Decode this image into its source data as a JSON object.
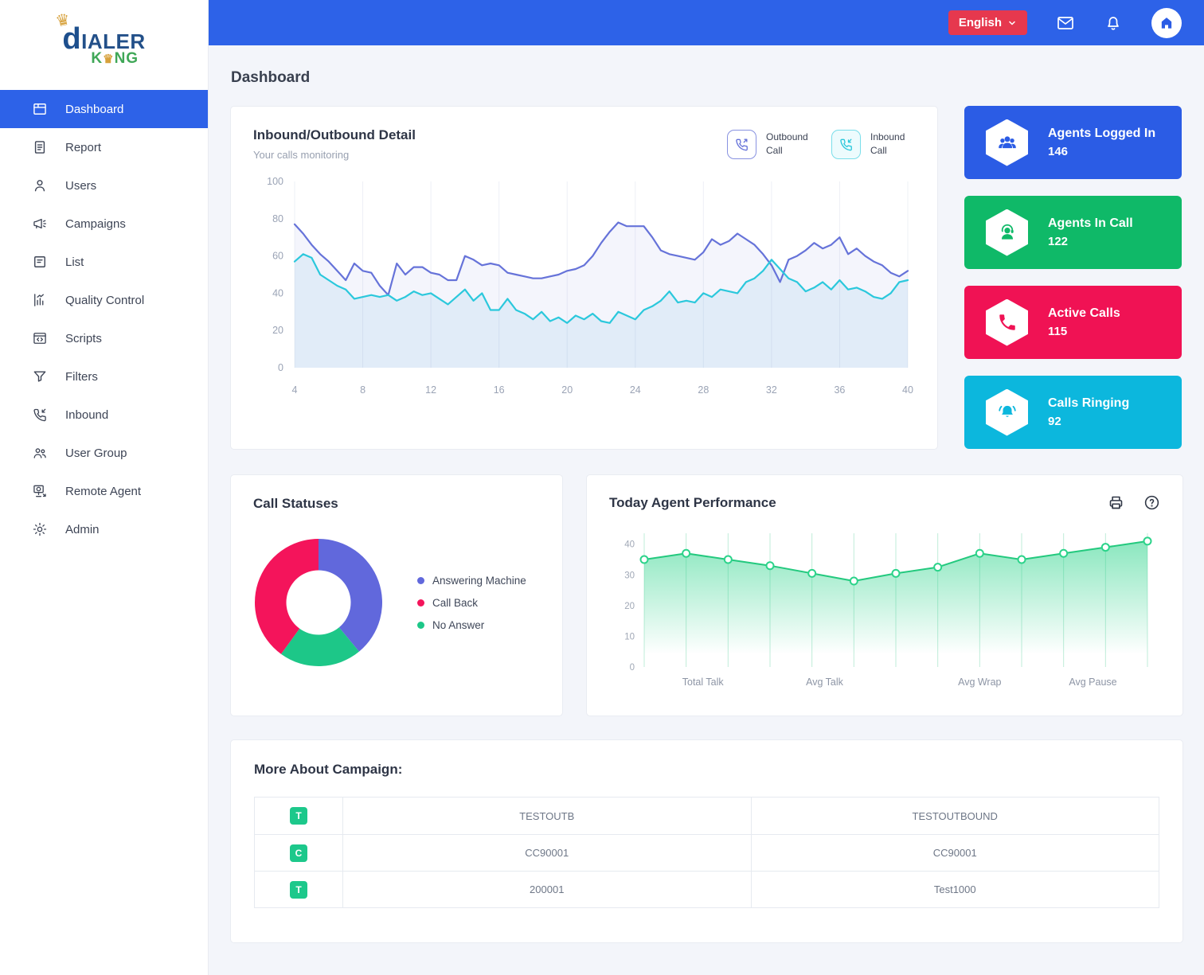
{
  "brand": {
    "crown": "♛",
    "d": "d",
    "rest": "IALER",
    "k": "K",
    "ng": "NG"
  },
  "topbar": {
    "language": "English"
  },
  "page_title": "Dashboard",
  "sidebar": {
    "items": [
      {
        "label": "Dashboard",
        "active": true
      },
      {
        "label": "Report"
      },
      {
        "label": "Users"
      },
      {
        "label": "Campaigns"
      },
      {
        "label": "List"
      },
      {
        "label": "Quality Control"
      },
      {
        "label": "Scripts"
      },
      {
        "label": "Filters"
      },
      {
        "label": "Inbound"
      },
      {
        "label": "User Group"
      },
      {
        "label": "Remote Agent"
      },
      {
        "label": "Admin"
      }
    ]
  },
  "inbound_outbound": {
    "title": "Inbound/Outbound Detail",
    "subtitle": "Your calls monitoring",
    "legend": [
      {
        "label": "Outbound Call",
        "color": "#6673d9",
        "border": "#8892e0",
        "bg": "#ffffff"
      },
      {
        "label": "Inbound Call",
        "color": "#2bc8dc",
        "border": "#7adeea",
        "bg": "#edfbfd"
      }
    ]
  },
  "stats": [
    {
      "label": "Agents Logged In",
      "value": "146",
      "color": "#2b5ce5",
      "icon": "agents-group"
    },
    {
      "label": "Agents In Call",
      "value": "122",
      "color": "#0fb968",
      "icon": "agent-headset"
    },
    {
      "label": "Active Calls",
      "value": "115",
      "color": "#f01254",
      "icon": "phone"
    },
    {
      "label": "Calls Ringing",
      "value": "92",
      "color": "#0cb7dd",
      "icon": "bell-ringing"
    }
  ],
  "call_statuses": {
    "title": "Call Statuses"
  },
  "performance": {
    "title": "Today Agent Performance"
  },
  "campaign": {
    "title": "More About Campaign:",
    "badge_color": "#1dc88b",
    "rows": [
      {
        "badge": "T",
        "c1": "TESTOUTB",
        "c2": "TESTOUTBOUND"
      },
      {
        "badge": "C",
        "c1": "CC90001",
        "c2": "CC90001"
      },
      {
        "badge": "T",
        "c1": "200001",
        "c2": "Test1000"
      }
    ]
  },
  "chart_data": [
    {
      "type": "line",
      "title": "Inbound/Outbound Detail",
      "x_range": [
        4,
        40
      ],
      "x_ticks": [
        4,
        8,
        12,
        16,
        20,
        24,
        28,
        32,
        36,
        40
      ],
      "y_ticks": [
        0,
        20,
        40,
        60,
        80,
        100
      ],
      "ylim": [
        0,
        100
      ],
      "grid": "vertical",
      "legend_position": "top-right",
      "series": [
        {
          "name": "Outbound Call",
          "color": "#6673d9",
          "fill": "rgba(102,115,217,0.07)",
          "values": [
            77,
            72,
            66,
            61,
            57,
            52,
            47,
            56,
            52,
            51,
            44,
            39,
            56,
            50,
            54,
            54,
            51,
            50,
            47,
            47,
            60,
            58,
            55,
            56,
            55,
            51,
            50,
            49,
            48,
            48,
            49,
            50,
            52,
            53,
            55,
            60,
            67,
            73,
            78,
            76,
            76,
            76,
            70,
            63,
            61,
            60,
            59,
            58,
            62,
            69,
            66,
            68,
            72,
            69,
            66,
            61,
            55,
            46,
            58,
            60,
            63,
            67,
            64,
            66,
            70,
            61,
            64,
            60,
            57,
            55,
            51,
            49,
            52
          ]
        },
        {
          "name": "Inbound Call",
          "color": "#2bc8dc",
          "fill": "rgba(93,170,226,0.12)",
          "values": [
            57,
            61,
            59,
            50,
            47,
            44,
            42,
            37,
            38,
            39,
            38,
            39,
            36,
            38,
            41,
            39,
            40,
            37,
            34,
            38,
            42,
            36,
            40,
            31,
            31,
            37,
            31,
            29,
            26,
            30,
            25,
            27,
            24,
            28,
            26,
            29,
            25,
            24,
            30,
            28,
            26,
            31,
            33,
            36,
            41,
            35,
            36,
            35,
            40,
            38,
            42,
            41,
            40,
            46,
            48,
            52,
            58,
            53,
            48,
            46,
            41,
            43,
            46,
            42,
            47,
            42,
            43,
            41,
            38,
            37,
            40,
            46,
            47
          ]
        }
      ]
    },
    {
      "type": "pie",
      "title": "Call Statuses",
      "donut": true,
      "labels": [
        "Answering Machine",
        "Call Back",
        "No Answer"
      ],
      "values": [
        39,
        40,
        21
      ],
      "colors": [
        "#6168dc",
        "#f4145b",
        "#1dc788"
      ],
      "start": "top",
      "clockwise_order": [
        0,
        2,
        1
      ],
      "legend_position": "right"
    },
    {
      "type": "area",
      "title": "Today Agent Performance",
      "values": [
        35,
        37,
        35,
        33,
        30.5,
        28,
        30.5,
        32.5,
        37,
        35,
        37,
        39,
        41
      ],
      "y_ticks": [
        0,
        10,
        20,
        30,
        40
      ],
      "ylim": [
        0,
        42
      ],
      "x_labels": [
        {
          "label": "Total Talk",
          "at": 1.4
        },
        {
          "label": "Avg Talk",
          "at": 4.3
        },
        {
          "label": "Avg Wrap",
          "at": 8
        },
        {
          "label": "Avg Pause",
          "at": 10.7
        }
      ],
      "color": "#2bd38a",
      "line_color": "#23c97e",
      "grid": "vertical-per-point"
    }
  ]
}
